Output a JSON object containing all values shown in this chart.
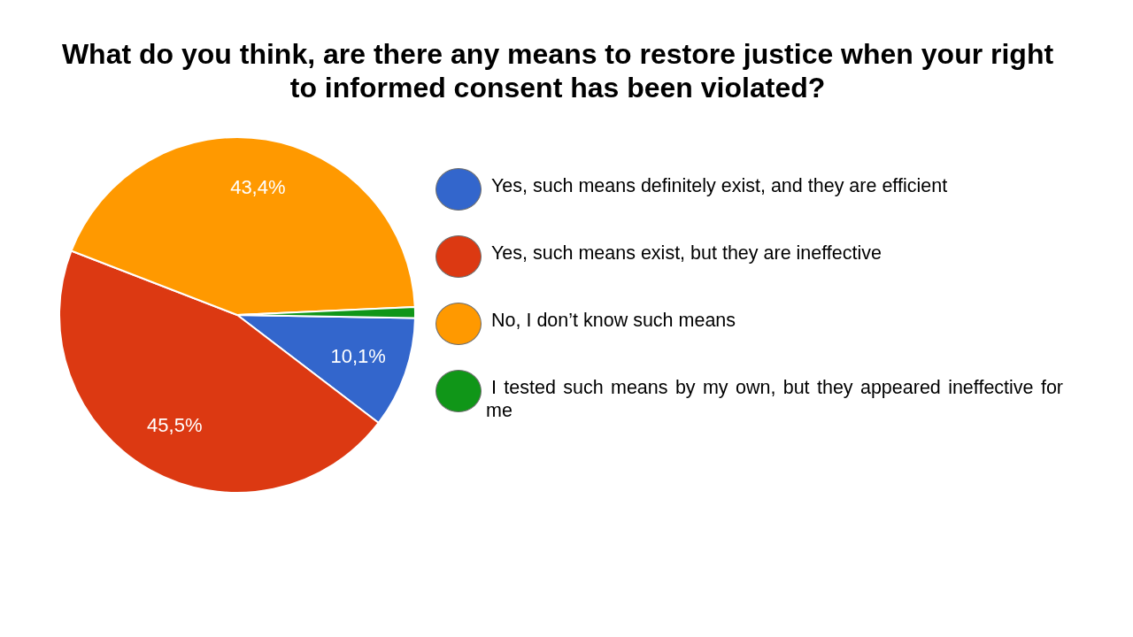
{
  "chart_data": {
    "type": "pie",
    "title": "What do you think, are there any means to restore justice when your right to informed consent has been violated?",
    "categories": [
      "Yes, such means definitely exist, and they are efficient",
      "Yes, such means exist, but they are ineffective",
      "No, I don’t know such means",
      "I tested such means by my own, but they appeared ineffective for me"
    ],
    "values": [
      10.1,
      45.5,
      43.4,
      1.0
    ],
    "colors": [
      "#3366cc",
      "#dc3912",
      "#ff9900",
      "#109618"
    ],
    "value_labels": [
      "10,1%",
      "45,5%",
      "43,4%",
      null
    ],
    "legend": "right"
  }
}
